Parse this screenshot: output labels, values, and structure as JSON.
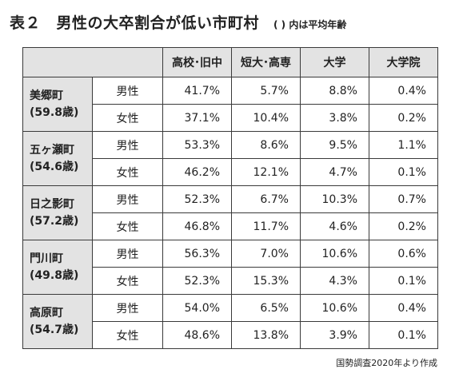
{
  "title": "表２　男性の大卒割合が低い市町村",
  "title_note": "( ) 内は平均年齢",
  "columns": [
    "高校･旧中",
    "短大･高専",
    "大学",
    "大学院"
  ],
  "rows": [
    {
      "town": "美郷町",
      "age": "(59.8歳)",
      "m_label": "男性",
      "m": [
        "41.7%",
        "5.7%",
        "8.8%",
        "0.4%"
      ],
      "f_label": "女性",
      "f": [
        "37.1%",
        "10.4%",
        "3.8%",
        "0.2%"
      ]
    },
    {
      "town": "五ヶ瀬町",
      "age": "(54.6歳)",
      "m_label": "男性",
      "m": [
        "53.3%",
        "8.6%",
        "9.5%",
        "1.1%"
      ],
      "f_label": "女性",
      "f": [
        "46.2%",
        "12.1%",
        "4.7%",
        "0.1%"
      ]
    },
    {
      "town": "日之影町",
      "age": "(57.2歳)",
      "m_label": "男性",
      "m": [
        "52.3%",
        "6.7%",
        "10.3%",
        "0.7%"
      ],
      "f_label": "女性",
      "f": [
        "46.8%",
        "11.7%",
        "4.6%",
        "0.2%"
      ]
    },
    {
      "town": "門川町",
      "age": "(49.8歳)",
      "m_label": "男性",
      "m": [
        "56.3%",
        "7.0%",
        "10.6%",
        "0.6%"
      ],
      "f_label": "女性",
      "f": [
        "52.3%",
        "15.3%",
        "4.3%",
        "0.1%"
      ]
    },
    {
      "town": "高原町",
      "age": "(54.7歳)",
      "m_label": "男性",
      "m": [
        "54.0%",
        "6.5%",
        "10.6%",
        "0.4%"
      ],
      "f_label": "女性",
      "f": [
        "48.6%",
        "13.8%",
        "3.9%",
        "0.1%"
      ]
    }
  ],
  "footnote": "国勢調査2020年より作成"
}
